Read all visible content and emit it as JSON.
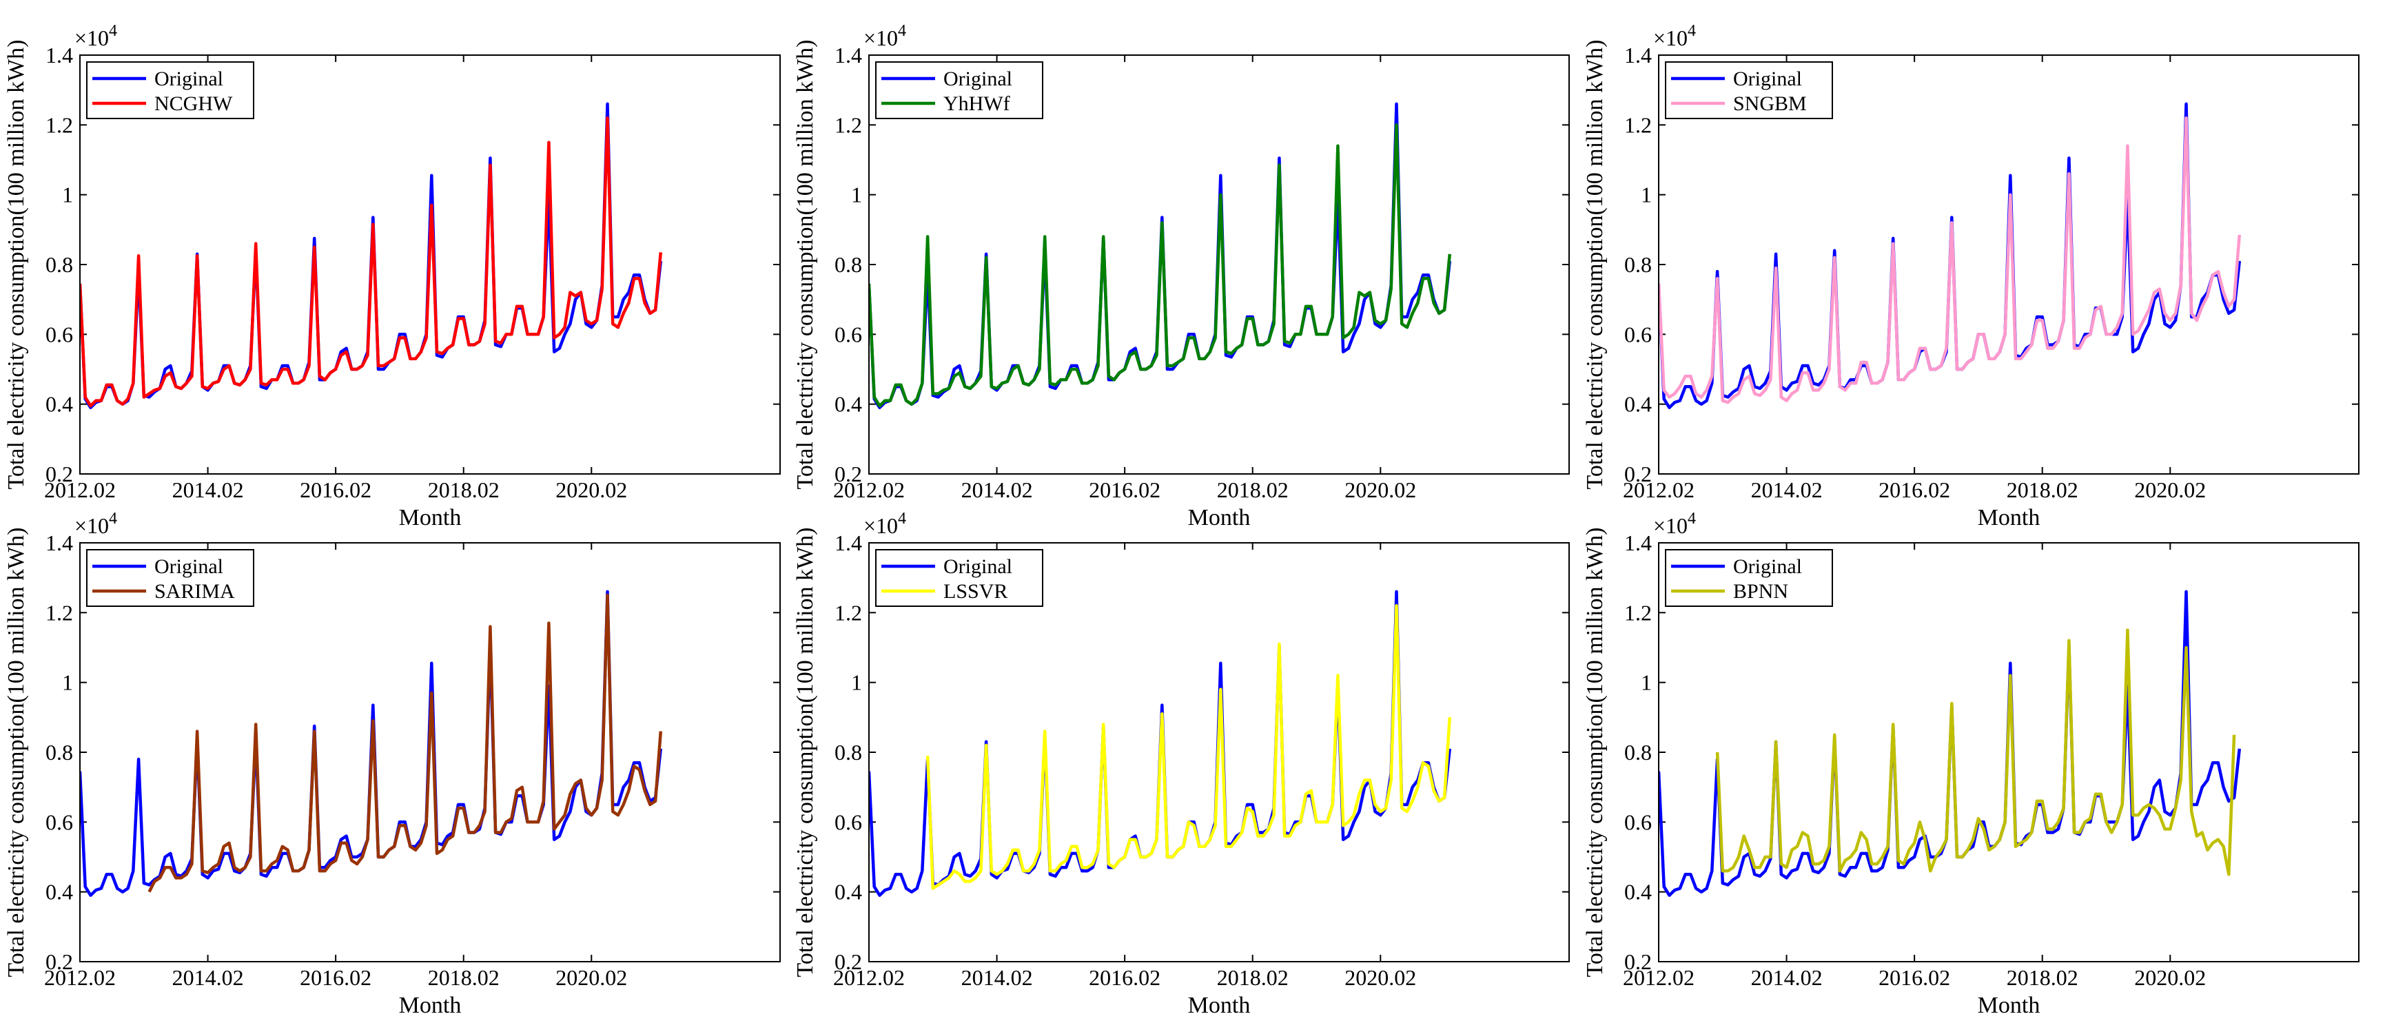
{
  "common": {
    "xlabel": "Month",
    "ylabel": "Total electricity consumption(100 million kWh)",
    "multiplier_base": "×10",
    "multiplier_exp": "4",
    "ylim": [
      0.2,
      1.4
    ],
    "yticks": [
      "0.2",
      "0.4",
      "0.6",
      "0.8",
      "1",
      "1.2",
      "1.4"
    ],
    "ytick_values": [
      0.2,
      0.4,
      0.6,
      0.8,
      1.0,
      1.2,
      1.4
    ],
    "xlim": [
      2012.0,
      2022.95
    ],
    "xticks": [
      "2012.02",
      "2014.02",
      "2016.02",
      "2018.02",
      "2020.02"
    ],
    "xtick_values": [
      2012.0,
      2014.0,
      2016.0,
      2018.0,
      2020.0
    ],
    "x_start": 2012.0,
    "x_step": 0.083333,
    "original": [
      0.745,
      0.415,
      0.39,
      0.405,
      0.41,
      0.45,
      0.45,
      0.41,
      0.4,
      0.41,
      0.46,
      0.78,
      0.425,
      0.42,
      0.435,
      0.445,
      0.5,
      0.51,
      0.45,
      0.445,
      0.46,
      0.495,
      0.83,
      0.45,
      0.44,
      0.46,
      0.465,
      0.51,
      0.51,
      0.46,
      0.455,
      0.47,
      0.51,
      0.84,
      0.45,
      0.445,
      0.47,
      0.47,
      0.51,
      0.51,
      0.46,
      0.46,
      0.47,
      0.52,
      0.875,
      0.47,
      0.47,
      0.49,
      0.5,
      0.55,
      0.56,
      0.5,
      0.5,
      0.51,
      0.55,
      0.935,
      0.5,
      0.5,
      0.52,
      0.53,
      0.6,
      0.6,
      0.53,
      0.53,
      0.55,
      0.6,
      1.055,
      0.54,
      0.535,
      0.56,
      0.57,
      0.65,
      0.65,
      0.57,
      0.57,
      0.58,
      0.64,
      1.105,
      0.57,
      0.565,
      0.6,
      0.6,
      0.675,
      0.675,
      0.6,
      0.6,
      0.6,
      0.65,
      0.99,
      0.55,
      0.56,
      0.6,
      0.63,
      0.7,
      0.72,
      0.63,
      0.62,
      0.64,
      0.74,
      1.26,
      0.65,
      0.65,
      0.7,
      0.72,
      0.77,
      0.77,
      0.7,
      0.66,
      0.67,
      0.81
    ]
  },
  "panels": [
    {
      "legend": [
        "Original",
        "NCGHW"
      ],
      "chart_data": {
        "type": "line",
        "xlabel": "Month",
        "ylabel": "Total electricity consumption(100 million kWh)",
        "ylim": [
          0.2,
          1.4
        ],
        "series": [
          {
            "name": "Original",
            "color": "#0000ff",
            "ref": "common.original"
          },
          {
            "name": "NCGHW",
            "color": "#ff0000",
            "start_index": 0,
            "values": [
              0.745,
              0.42,
              0.395,
              0.41,
              0.41,
              0.455,
              0.455,
              0.41,
              0.4,
              0.415,
              0.46,
              0.825,
              0.42,
              0.43,
              0.44,
              0.445,
              0.48,
              0.49,
              0.45,
              0.445,
              0.46,
              0.48,
              0.825,
              0.45,
              0.445,
              0.46,
              0.465,
              0.5,
              0.51,
              0.46,
              0.455,
              0.47,
              0.5,
              0.86,
              0.46,
              0.455,
              0.47,
              0.47,
              0.5,
              0.5,
              0.46,
              0.46,
              0.47,
              0.51,
              0.85,
              0.48,
              0.47,
              0.49,
              0.5,
              0.54,
              0.55,
              0.5,
              0.5,
              0.51,
              0.54,
              0.915,
              0.51,
              0.51,
              0.52,
              0.53,
              0.59,
              0.59,
              0.53,
              0.53,
              0.55,
              0.59,
              0.97,
              0.55,
              0.545,
              0.56,
              0.57,
              0.645,
              0.645,
              0.57,
              0.57,
              0.58,
              0.63,
              1.085,
              0.58,
              0.575,
              0.6,
              0.6,
              0.68,
              0.68,
              0.6,
              0.6,
              0.6,
              0.65,
              1.15,
              0.59,
              0.6,
              0.62,
              0.72,
              0.71,
              0.72,
              0.64,
              0.63,
              0.64,
              0.73,
              1.22,
              0.63,
              0.62,
              0.66,
              0.69,
              0.76,
              0.76,
              0.69,
              0.66,
              0.67,
              0.835
            ]
          }
        ]
      }
    },
    {
      "legend": [
        "Original",
        "YhHWf"
      ],
      "chart_data": {
        "type": "line",
        "xlabel": "Month",
        "ylabel": "Total electricity consumption(100 million kWh)",
        "ylim": [
          0.2,
          1.4
        ],
        "series": [
          {
            "name": "Original",
            "color": "#0000ff",
            "ref": "common.original"
          },
          {
            "name": "YhHWf",
            "color": "#008000",
            "start_index": 0,
            "values": [
              0.745,
              0.42,
              0.395,
              0.41,
              0.41,
              0.455,
              0.455,
              0.41,
              0.4,
              0.415,
              0.46,
              0.88,
              0.43,
              0.43,
              0.44,
              0.445,
              0.48,
              0.49,
              0.45,
              0.445,
              0.46,
              0.48,
              0.82,
              0.45,
              0.445,
              0.46,
              0.465,
              0.5,
              0.51,
              0.46,
              0.455,
              0.47,
              0.5,
              0.88,
              0.46,
              0.455,
              0.47,
              0.47,
              0.5,
              0.5,
              0.46,
              0.46,
              0.47,
              0.51,
              0.88,
              0.48,
              0.47,
              0.49,
              0.5,
              0.54,
              0.55,
              0.5,
              0.5,
              0.51,
              0.54,
              0.92,
              0.51,
              0.51,
              0.52,
              0.53,
              0.59,
              0.59,
              0.53,
              0.53,
              0.55,
              0.59,
              1.0,
              0.55,
              0.545,
              0.56,
              0.57,
              0.645,
              0.645,
              0.57,
              0.57,
              0.58,
              0.63,
              1.085,
              0.58,
              0.575,
              0.6,
              0.6,
              0.68,
              0.68,
              0.6,
              0.6,
              0.6,
              0.65,
              1.14,
              0.59,
              0.6,
              0.62,
              0.72,
              0.71,
              0.72,
              0.64,
              0.63,
              0.64,
              0.73,
              1.2,
              0.63,
              0.62,
              0.66,
              0.69,
              0.76,
              0.76,
              0.69,
              0.66,
              0.67,
              0.83
            ]
          }
        ]
      }
    },
    {
      "legend": [
        "Original",
        "SNGBM"
      ],
      "chart_data": {
        "type": "line",
        "xlabel": "Month",
        "ylabel": "Total electricity consumption(100 million kWh)",
        "ylim": [
          0.2,
          1.4
        ],
        "series": [
          {
            "name": "Original",
            "color": "#0000ff",
            "ref": "common.original"
          },
          {
            "name": "SNGBM",
            "color": "#ff99cc",
            "start_index": 0,
            "values": [
              0.745,
              0.44,
              0.42,
              0.43,
              0.45,
              0.48,
              0.48,
              0.43,
              0.42,
              0.44,
              0.48,
              0.76,
              0.41,
              0.405,
              0.42,
              0.43,
              0.47,
              0.48,
              0.43,
              0.425,
              0.44,
              0.47,
              0.79,
              0.42,
              0.41,
              0.43,
              0.44,
              0.49,
              0.49,
              0.44,
              0.44,
              0.46,
              0.5,
              0.82,
              0.45,
              0.44,
              0.46,
              0.46,
              0.52,
              0.52,
              0.46,
              0.46,
              0.47,
              0.52,
              0.86,
              0.47,
              0.47,
              0.49,
              0.5,
              0.56,
              0.56,
              0.5,
              0.5,
              0.51,
              0.56,
              0.92,
              0.5,
              0.5,
              0.52,
              0.53,
              0.6,
              0.6,
              0.53,
              0.53,
              0.55,
              0.6,
              1.0,
              0.53,
              0.53,
              0.55,
              0.57,
              0.64,
              0.64,
              0.56,
              0.56,
              0.58,
              0.64,
              1.06,
              0.56,
              0.56,
              0.59,
              0.6,
              0.67,
              0.68,
              0.6,
              0.6,
              0.62,
              0.66,
              1.14,
              0.6,
              0.61,
              0.64,
              0.67,
              0.72,
              0.73,
              0.66,
              0.64,
              0.66,
              0.74,
              1.22,
              0.66,
              0.64,
              0.68,
              0.71,
              0.77,
              0.78,
              0.72,
              0.68,
              0.7,
              0.885
            ]
          }
        ]
      }
    },
    {
      "legend": [
        "Original",
        "SARIMA"
      ],
      "chart_data": {
        "type": "line",
        "xlabel": "Month",
        "ylabel": "Total electricity consumption(100 million kWh)",
        "ylim": [
          0.2,
          1.4
        ],
        "series": [
          {
            "name": "Original",
            "color": "#0000ff",
            "ref": "common.original"
          },
          {
            "name": "SARIMA",
            "color": "#993300",
            "start_index": 13,
            "values": [
              0.4,
              0.43,
              0.44,
              0.47,
              0.47,
              0.44,
              0.44,
              0.45,
              0.48,
              0.86,
              0.46,
              0.455,
              0.47,
              0.48,
              0.53,
              0.54,
              0.47,
              0.46,
              0.47,
              0.5,
              0.88,
              0.46,
              0.46,
              0.48,
              0.49,
              0.53,
              0.52,
              0.46,
              0.46,
              0.47,
              0.52,
              0.86,
              0.46,
              0.46,
              0.48,
              0.49,
              0.54,
              0.54,
              0.49,
              0.48,
              0.5,
              0.55,
              0.89,
              0.5,
              0.5,
              0.52,
              0.53,
              0.59,
              0.59,
              0.53,
              0.52,
              0.54,
              0.59,
              0.97,
              0.51,
              0.52,
              0.55,
              0.56,
              0.64,
              0.64,
              0.57,
              0.57,
              0.59,
              0.63,
              1.16,
              0.57,
              0.57,
              0.6,
              0.61,
              0.69,
              0.7,
              0.6,
              0.6,
              0.6,
              0.66,
              1.17,
              0.58,
              0.6,
              0.62,
              0.68,
              0.71,
              0.72,
              0.64,
              0.62,
              0.64,
              0.72,
              1.25,
              0.63,
              0.62,
              0.65,
              0.69,
              0.76,
              0.75,
              0.69,
              0.65,
              0.66,
              0.86
            ]
          }
        ]
      }
    },
    {
      "legend": [
        "Original",
        "LSSVR"
      ],
      "chart_data": {
        "type": "line",
        "xlabel": "Month",
        "ylabel": "Total electricity consumption(100 million kWh)",
        "ylim": [
          0.2,
          1.4
        ],
        "series": [
          {
            "name": "Original",
            "color": "#0000ff",
            "ref": "common.original"
          },
          {
            "name": "LSSVR",
            "color": "#ffff00",
            "start_index": 11,
            "values": [
              0.79,
              0.41,
              0.42,
              0.43,
              0.44,
              0.46,
              0.45,
              0.43,
              0.43,
              0.44,
              0.46,
              0.82,
              0.46,
              0.45,
              0.46,
              0.48,
              0.52,
              0.52,
              0.46,
              0.46,
              0.48,
              0.52,
              0.86,
              0.46,
              0.46,
              0.48,
              0.49,
              0.53,
              0.53,
              0.47,
              0.47,
              0.48,
              0.52,
              0.88,
              0.48,
              0.47,
              0.49,
              0.5,
              0.55,
              0.55,
              0.5,
              0.5,
              0.51,
              0.55,
              0.91,
              0.5,
              0.5,
              0.52,
              0.53,
              0.6,
              0.59,
              0.53,
              0.53,
              0.55,
              0.59,
              0.98,
              0.53,
              0.53,
              0.55,
              0.57,
              0.64,
              0.63,
              0.56,
              0.56,
              0.58,
              0.62,
              1.11,
              0.56,
              0.56,
              0.59,
              0.6,
              0.68,
              0.69,
              0.6,
              0.6,
              0.6,
              0.65,
              1.02,
              0.59,
              0.6,
              0.62,
              0.68,
              0.72,
              0.72,
              0.65,
              0.63,
              0.64,
              0.72,
              1.22,
              0.64,
              0.63,
              0.66,
              0.7,
              0.77,
              0.76,
              0.69,
              0.66,
              0.67,
              0.9
            ]
          }
        ]
      }
    },
    {
      "legend": [
        "Original",
        "BPNN"
      ],
      "chart_data": {
        "type": "line",
        "xlabel": "Month",
        "ylabel": "Total electricity consumption(100 million kWh)",
        "ylim": [
          0.2,
          1.4
        ],
        "series": [
          {
            "name": "Original",
            "color": "#0000ff",
            "ref": "common.original"
          },
          {
            "name": "BPNN",
            "color": "#bfbf00",
            "start_index": 11,
            "values": [
              0.8,
              0.46,
              0.46,
              0.47,
              0.5,
              0.56,
              0.52,
              0.47,
              0.47,
              0.5,
              0.5,
              0.83,
              0.48,
              0.47,
              0.52,
              0.53,
              0.57,
              0.56,
              0.48,
              0.48,
              0.49,
              0.53,
              0.85,
              0.46,
              0.49,
              0.5,
              0.52,
              0.57,
              0.55,
              0.48,
              0.48,
              0.5,
              0.53,
              0.88,
              0.49,
              0.48,
              0.52,
              0.54,
              0.6,
              0.55,
              0.46,
              0.5,
              0.52,
              0.55,
              0.94,
              0.5,
              0.5,
              0.52,
              0.55,
              0.61,
              0.58,
              0.52,
              0.53,
              0.55,
              0.6,
              1.02,
              0.53,
              0.54,
              0.55,
              0.57,
              0.66,
              0.66,
              0.58,
              0.58,
              0.6,
              0.64,
              1.12,
              0.57,
              0.57,
              0.6,
              0.61,
              0.68,
              0.68,
              0.6,
              0.57,
              0.6,
              0.65,
              1.15,
              0.62,
              0.62,
              0.64,
              0.65,
              0.64,
              0.62,
              0.58,
              0.58,
              0.64,
              0.72,
              1.1,
              0.63,
              0.56,
              0.57,
              0.52,
              0.54,
              0.55,
              0.53,
              0.45,
              0.85
            ]
          }
        ]
      }
    }
  ]
}
